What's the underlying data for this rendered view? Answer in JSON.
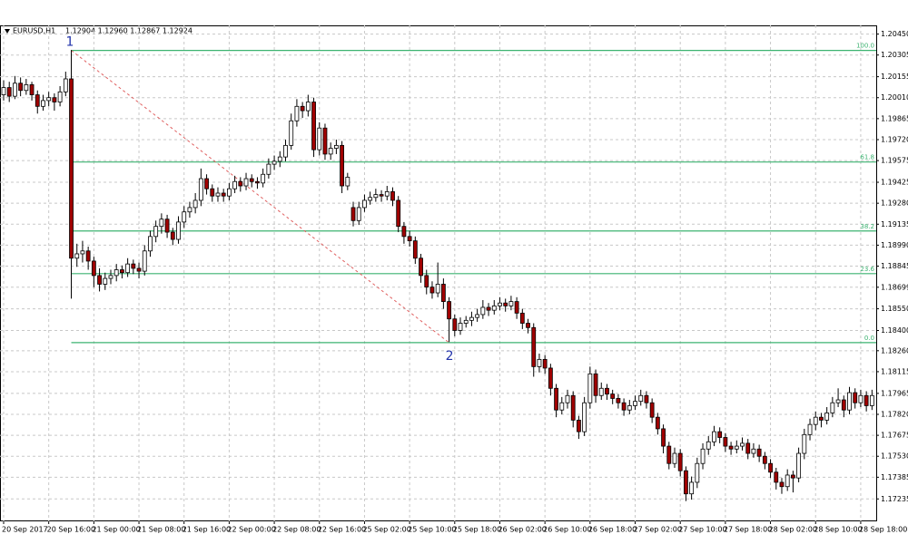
{
  "chart_data": {
    "type": "candlestick",
    "symbol": "EURUSD,H1",
    "quote": "1.12904 1.12960 1.12867 1.12924",
    "bull_color": "#ffffff",
    "bear_color": "#a00000",
    "grid": true,
    "ylim": [
      1.1708,
      1.2051
    ],
    "yticks": [
      {
        "value": 1.2045,
        "label": "1.20450"
      },
      1.20305,
      1.20155,
      {
        "value": 1.2001,
        "label": "1.20010"
      },
      1.19865,
      {
        "value": 1.1972,
        "label": "1.19720"
      },
      1.19575,
      1.19425,
      {
        "value": 1.1928,
        "label": "1.19280"
      },
      1.19135,
      {
        "value": 1.1899,
        "label": "1.18990"
      },
      1.18845,
      1.18699,
      {
        "value": 1.1855,
        "label": "1.18550"
      },
      {
        "value": 1.184,
        "label": "1.18400"
      },
      {
        "value": 1.1826,
        "label": "1.18260"
      },
      1.18115,
      1.17965,
      {
        "value": 1.1782,
        "label": "1.17820"
      },
      1.17675,
      {
        "value": 1.1753,
        "label": "1.17530"
      },
      1.17385,
      1.17235
    ],
    "categories": [
      "20 Sep 2017",
      null,
      null,
      null,
      null,
      null,
      null,
      null,
      "20 Sep 16:00",
      null,
      null,
      null,
      null,
      null,
      null,
      null,
      "21 Sep 00:00",
      null,
      null,
      null,
      null,
      null,
      null,
      null,
      "21 Sep 08:00",
      null,
      null,
      null,
      null,
      null,
      null,
      null,
      "21 Sep 16:00",
      null,
      null,
      null,
      null,
      null,
      null,
      null,
      "22 Sep 00:00",
      null,
      null,
      null,
      null,
      null,
      null,
      null,
      "22 Sep 08:00",
      null,
      null,
      null,
      null,
      null,
      null,
      null,
      "22 Sep 16:00",
      null,
      null,
      null,
      null,
      null,
      null,
      null,
      "25 Sep 02:00",
      null,
      null,
      null,
      null,
      null,
      null,
      null,
      "25 Sep 10:00",
      null,
      null,
      null,
      null,
      null,
      null,
      null,
      "25 Sep 18:00",
      null,
      null,
      null,
      null,
      null,
      null,
      null,
      "26 Sep 02:00",
      null,
      null,
      null,
      null,
      null,
      null,
      null,
      "26 Sep 10:00",
      null,
      null,
      null,
      null,
      null,
      null,
      null,
      "26 Sep 18:00",
      null,
      null,
      null,
      null,
      null,
      null,
      null,
      "27 Sep 02:00",
      null,
      null,
      null,
      null,
      null,
      null,
      null,
      "27 Sep 10:00",
      null,
      null,
      null,
      null,
      null,
      null,
      null,
      "27 Sep 18:00",
      null,
      null,
      null,
      null,
      null,
      null,
      null,
      "28 Sep 02:00",
      null,
      null,
      null,
      null,
      null,
      null,
      null,
      "28 Sep 10:00",
      null,
      null,
      null,
      null,
      null,
      null,
      null,
      "28 Sep 18:00",
      null,
      null
    ],
    "ohlc": [
      [
        1.2003,
        1.2013,
        1.1999,
        1.2008
      ],
      [
        1.2008,
        1.2012,
        1.1998,
        1.2002
      ],
      [
        1.2002,
        1.2016,
        1.2,
        1.2011
      ],
      [
        1.2011,
        1.2015,
        1.2002,
        1.2006
      ],
      [
        1.2006,
        1.2014,
        1.2003,
        1.201
      ],
      [
        1.201,
        1.2012,
        1.1999,
        1.2003
      ],
      [
        1.2003,
        1.2006,
        1.199,
        1.1995
      ],
      [
        1.1995,
        1.2003,
        1.1992,
        1.1999
      ],
      [
        1.1999,
        1.2005,
        1.1995,
        1.2001
      ],
      [
        1.2001,
        1.2004,
        1.1992,
        1.1998
      ],
      [
        1.1998,
        1.2009,
        1.1995,
        1.2005
      ],
      [
        1.2005,
        1.2019,
        1.2002,
        1.2014
      ],
      [
        1.2014,
        1.2034,
        1.1862,
        1.189
      ],
      [
        1.189,
        1.19,
        1.1884,
        1.1893
      ],
      [
        1.1893,
        1.1902,
        1.1887,
        1.1895
      ],
      [
        1.1895,
        1.1898,
        1.1882,
        1.1888
      ],
      [
        1.1888,
        1.1891,
        1.187,
        1.1878
      ],
      [
        1.1878,
        1.1883,
        1.1867,
        1.1872
      ],
      [
        1.1872,
        1.188,
        1.1868,
        1.1876
      ],
      [
        1.1876,
        1.1882,
        1.1872,
        1.1878
      ],
      [
        1.1878,
        1.1886,
        1.1874,
        1.1882
      ],
      [
        1.1882,
        1.1885,
        1.1876,
        1.188
      ],
      [
        1.188,
        1.189,
        1.1877,
        1.1886
      ],
      [
        1.1886,
        1.1889,
        1.1879,
        1.1883
      ],
      [
        1.1883,
        1.1887,
        1.1876,
        1.1881
      ],
      [
        1.1881,
        1.1899,
        1.1878,
        1.1895
      ],
      [
        1.1895,
        1.1909,
        1.1891,
        1.1905
      ],
      [
        1.1905,
        1.1916,
        1.1901,
        1.1912
      ],
      [
        1.1912,
        1.1921,
        1.1907,
        1.1917
      ],
      [
        1.1917,
        1.192,
        1.1904,
        1.1908
      ],
      [
        1.1908,
        1.1911,
        1.1899,
        1.1903
      ],
      [
        1.1903,
        1.1919,
        1.19,
        1.1915
      ],
      [
        1.1915,
        1.1926,
        1.1911,
        1.1922
      ],
      [
        1.1922,
        1.1929,
        1.1918,
        1.1925
      ],
      [
        1.1925,
        1.1935,
        1.1921,
        1.193
      ],
      [
        1.193,
        1.1952,
        1.1926,
        1.1945
      ],
      [
        1.1945,
        1.1948,
        1.1934,
        1.1938
      ],
      [
        1.1938,
        1.1941,
        1.1929,
        1.1933
      ],
      [
        1.1933,
        1.1939,
        1.1929,
        1.1935
      ],
      [
        1.1935,
        1.1938,
        1.1929,
        1.1933
      ],
      [
        1.1933,
        1.1942,
        1.193,
        1.1938
      ],
      [
        1.1938,
        1.1947,
        1.1935,
        1.1943
      ],
      [
        1.1943,
        1.1946,
        1.1936,
        1.194
      ],
      [
        1.194,
        1.1949,
        1.1937,
        1.1945
      ],
      [
        1.1945,
        1.1948,
        1.1939,
        1.1943
      ],
      [
        1.1943,
        1.1946,
        1.1938,
        1.1942
      ],
      [
        1.1942,
        1.1952,
        1.1939,
        1.1948
      ],
      [
        1.1948,
        1.1959,
        1.1945,
        1.1955
      ],
      [
        1.1955,
        1.1961,
        1.1951,
        1.1957
      ],
      [
        1.1957,
        1.1964,
        1.1953,
        1.196
      ],
      [
        1.196,
        1.1972,
        1.1957,
        1.1968
      ],
      [
        1.1968,
        1.199,
        1.1965,
        1.1985
      ],
      [
        1.1985,
        1.2,
        1.1981,
        1.1995
      ],
      [
        1.1995,
        1.1998,
        1.1987,
        1.1992
      ],
      [
        1.1992,
        1.2003,
        1.1988,
        1.1998
      ],
      [
        1.1998,
        1.2001,
        1.196,
        1.1965
      ],
      [
        1.1965,
        1.1984,
        1.1961,
        1.198
      ],
      [
        1.198,
        1.1983,
        1.1958,
        1.1962
      ],
      [
        1.1962,
        1.197,
        1.1958,
        1.1966
      ],
      [
        1.1966,
        1.1972,
        1.1962,
        1.1968
      ],
      [
        1.1968,
        1.1971,
        1.1935,
        1.194
      ],
      [
        1.194,
        1.1949,
        1.1937,
        1.1946
      ],
      [
        1.1925,
        1.1929,
        1.1912,
        1.1916
      ],
      [
        1.1916,
        1.1929,
        1.1913,
        1.1925
      ],
      [
        1.1925,
        1.1934,
        1.1922,
        1.193
      ],
      [
        1.193,
        1.1936,
        1.1927,
        1.1932
      ],
      [
        1.1932,
        1.1938,
        1.1929,
        1.1934
      ],
      [
        1.1934,
        1.1937,
        1.1929,
        1.1933
      ],
      [
        1.1933,
        1.194,
        1.193,
        1.1936
      ],
      [
        1.1936,
        1.1939,
        1.1926,
        1.193
      ],
      [
        1.193,
        1.1933,
        1.1908,
        1.1912
      ],
      [
        1.1912,
        1.1915,
        1.19,
        1.1905
      ],
      [
        1.1905,
        1.1909,
        1.1898,
        1.1902
      ],
      [
        1.1902,
        1.1905,
        1.1886,
        1.189
      ],
      [
        1.189,
        1.1893,
        1.1873,
        1.1878
      ],
      [
        1.1878,
        1.1882,
        1.1865,
        1.187
      ],
      [
        1.187,
        1.1874,
        1.1862,
        1.1866
      ],
      [
        1.1866,
        1.1887,
        1.1863,
        1.1872
      ],
      [
        1.1872,
        1.1876,
        1.1855,
        1.186
      ],
      [
        1.186,
        1.1863,
        1.1832,
        1.1848
      ],
      [
        1.1848,
        1.1851,
        1.1836,
        1.184
      ],
      [
        1.184,
        1.1849,
        1.1837,
        1.1845
      ],
      [
        1.1845,
        1.185,
        1.1842,
        1.1847
      ],
      [
        1.1847,
        1.1853,
        1.1843,
        1.1849
      ],
      [
        1.1849,
        1.1855,
        1.1846,
        1.1851
      ],
      [
        1.1851,
        1.1861,
        1.1848,
        1.1856
      ],
      [
        1.1856,
        1.1859,
        1.185,
        1.1854
      ],
      [
        1.1854,
        1.1861,
        1.1851,
        1.1857
      ],
      [
        1.1857,
        1.1863,
        1.1854,
        1.1859
      ],
      [
        1.1859,
        1.1862,
        1.1853,
        1.1857
      ],
      [
        1.1857,
        1.1864,
        1.1854,
        1.186
      ],
      [
        1.186,
        1.1863,
        1.1848,
        1.1852
      ],
      [
        1.1852,
        1.1855,
        1.1841,
        1.1845
      ],
      [
        1.1845,
        1.1848,
        1.1838,
        1.1842
      ],
      [
        1.1842,
        1.1845,
        1.1808,
        1.1815
      ],
      [
        1.1815,
        1.1824,
        1.1811,
        1.182
      ],
      [
        1.182,
        1.1823,
        1.181,
        1.1814
      ],
      [
        1.1814,
        1.1817,
        1.1795,
        1.18
      ],
      [
        1.18,
        1.1803,
        1.178,
        1.1785
      ],
      [
        1.1785,
        1.1794,
        1.1782,
        1.179
      ],
      [
        1.179,
        1.1799,
        1.1786,
        1.1795
      ],
      [
        1.1795,
        1.1798,
        1.1773,
        1.1778
      ],
      [
        1.1778,
        1.1781,
        1.1765,
        1.177
      ],
      [
        1.177,
        1.1794,
        1.1767,
        1.179
      ],
      [
        1.179,
        1.1815,
        1.1786,
        1.181
      ],
      [
        1.181,
        1.1813,
        1.179,
        1.1795
      ],
      [
        1.1795,
        1.1804,
        1.1792,
        1.18
      ],
      [
        1.18,
        1.1803,
        1.1792,
        1.1796
      ],
      [
        1.1796,
        1.1799,
        1.1789,
        1.1793
      ],
      [
        1.1793,
        1.1796,
        1.1786,
        1.179
      ],
      [
        1.179,
        1.1793,
        1.1781,
        1.1785
      ],
      [
        1.1785,
        1.1792,
        1.1782,
        1.1788
      ],
      [
        1.1788,
        1.1795,
        1.1785,
        1.1791
      ],
      [
        1.1791,
        1.1799,
        1.1788,
        1.1795
      ],
      [
        1.1795,
        1.1798,
        1.1786,
        1.179
      ],
      [
        1.179,
        1.1793,
        1.1776,
        1.178
      ],
      [
        1.178,
        1.1783,
        1.1768,
        1.1772
      ],
      [
        1.1772,
        1.1775,
        1.1755,
        1.176
      ],
      [
        1.176,
        1.1763,
        1.1744,
        1.1748
      ],
      [
        1.1748,
        1.1759,
        1.1745,
        1.1755
      ],
      [
        1.1755,
        1.1758,
        1.1739,
        1.1743
      ],
      [
        1.1743,
        1.1746,
        1.1722,
        1.1727
      ],
      [
        1.1727,
        1.1739,
        1.1723,
        1.1735
      ],
      [
        1.1735,
        1.1752,
        1.1731,
        1.1748
      ],
      [
        1.1748,
        1.1762,
        1.1744,
        1.1758
      ],
      [
        1.1758,
        1.1767,
        1.1754,
        1.1763
      ],
      [
        1.1763,
        1.1774,
        1.176,
        1.177
      ],
      [
        1.177,
        1.1773,
        1.1762,
        1.1766
      ],
      [
        1.1766,
        1.1769,
        1.1756,
        1.176
      ],
      [
        1.176,
        1.1763,
        1.1754,
        1.1758
      ],
      [
        1.1758,
        1.1764,
        1.1755,
        1.176
      ],
      [
        1.176,
        1.1766,
        1.1757,
        1.1762
      ],
      [
        1.1762,
        1.1765,
        1.1751,
        1.1755
      ],
      [
        1.1755,
        1.1762,
        1.1752,
        1.1758
      ],
      [
        1.1758,
        1.1761,
        1.1749,
        1.1753
      ],
      [
        1.1753,
        1.1756,
        1.1744,
        1.1748
      ],
      [
        1.1748,
        1.1751,
        1.1738,
        1.1742
      ],
      [
        1.1742,
        1.1745,
        1.173,
        1.1735
      ],
      [
        1.1735,
        1.1738,
        1.1727,
        1.1732
      ],
      [
        1.1732,
        1.1744,
        1.1729,
        1.174
      ],
      [
        1.174,
        1.1743,
        1.1728,
        1.1738
      ],
      [
        1.1738,
        1.1759,
        1.1735,
        1.1755
      ],
      [
        1.1755,
        1.1772,
        1.1751,
        1.1768
      ],
      [
        1.1768,
        1.1779,
        1.1764,
        1.1775
      ],
      [
        1.1775,
        1.1784,
        1.1771,
        1.178
      ],
      [
        1.178,
        1.1783,
        1.1773,
        1.1778
      ],
      [
        1.1778,
        1.1787,
        1.1775,
        1.1783
      ],
      [
        1.1783,
        1.1794,
        1.178,
        1.179
      ],
      [
        1.179,
        1.18,
        1.1787,
        1.1792
      ],
      [
        1.1792,
        1.1795,
        1.178,
        1.1785
      ],
      [
        1.1785,
        1.1801,
        1.1782,
        1.1797
      ],
      [
        1.1797,
        1.18,
        1.1786,
        1.179
      ],
      [
        1.179,
        1.1799,
        1.1787,
        1.1795
      ],
      [
        1.1795,
        1.1798,
        1.1784,
        1.1788
      ],
      [
        1.1788,
        1.1799,
        1.1785,
        1.1795
      ]
    ],
    "fibonacci": {
      "color": "#3cb371",
      "trendline_color": "#e06060",
      "anchor_color": "#2233aa",
      "levels": [
        {
          "label": "100.0",
          "price": 1.20337
        },
        {
          "label": "61.8",
          "price": 1.19565
        },
        {
          "label": "38.2",
          "price": 1.19088
        },
        {
          "label": "23.6",
          "price": 1.18793
        },
        {
          "label": "0.0",
          "price": 1.18316
        }
      ],
      "anchors": [
        {
          "label": "1",
          "x": 12,
          "price": 1.20337
        },
        {
          "label": "2",
          "x": 79,
          "price": 1.18316
        }
      ]
    }
  }
}
